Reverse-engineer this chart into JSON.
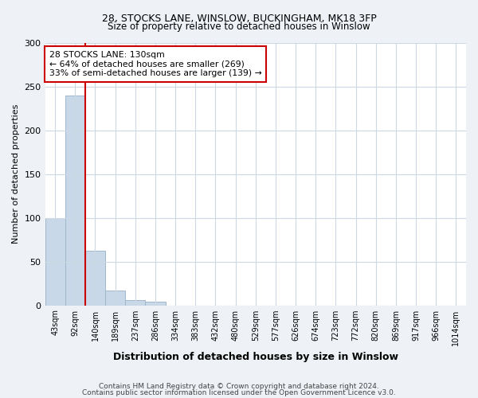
{
  "title1": "28, STOCKS LANE, WINSLOW, BUCKINGHAM, MK18 3FP",
  "title2": "Size of property relative to detached houses in Winslow",
  "xlabel": "Distribution of detached houses by size in Winslow",
  "ylabel": "Number of detached properties",
  "categories": [
    "43sqm",
    "92sqm",
    "140sqm",
    "189sqm",
    "237sqm",
    "286sqm",
    "334sqm",
    "383sqm",
    "432sqm",
    "480sqm",
    "529sqm",
    "577sqm",
    "626sqm",
    "674sqm",
    "723sqm",
    "772sqm",
    "820sqm",
    "869sqm",
    "917sqm",
    "966sqm",
    "1014sqm"
  ],
  "values": [
    100,
    240,
    62,
    17,
    6,
    4,
    0,
    0,
    0,
    0,
    0,
    0,
    0,
    0,
    0,
    0,
    0,
    0,
    0,
    0,
    0
  ],
  "bar_color": "#c8d8e8",
  "bar_edge_color": "#a0b8cc",
  "ylim": [
    0,
    300
  ],
  "yticks": [
    0,
    50,
    100,
    150,
    200,
    250,
    300
  ],
  "property_line_color": "#cc0000",
  "annotation_line1": "28 STOCKS LANE: 130sqm",
  "annotation_line2": "← 64% of detached houses are smaller (269)",
  "annotation_line3": "33% of semi-detached houses are larger (139) →",
  "annotation_box_color": "#ffffff",
  "annotation_box_edge_color": "#cc0000",
  "footer1": "Contains HM Land Registry data © Crown copyright and database right 2024.",
  "footer2": "Contains public sector information licensed under the Open Government Licence v3.0.",
  "background_color": "#eef2f7",
  "plot_background_color": "#ffffff",
  "grid_color": "#ccd8e4"
}
